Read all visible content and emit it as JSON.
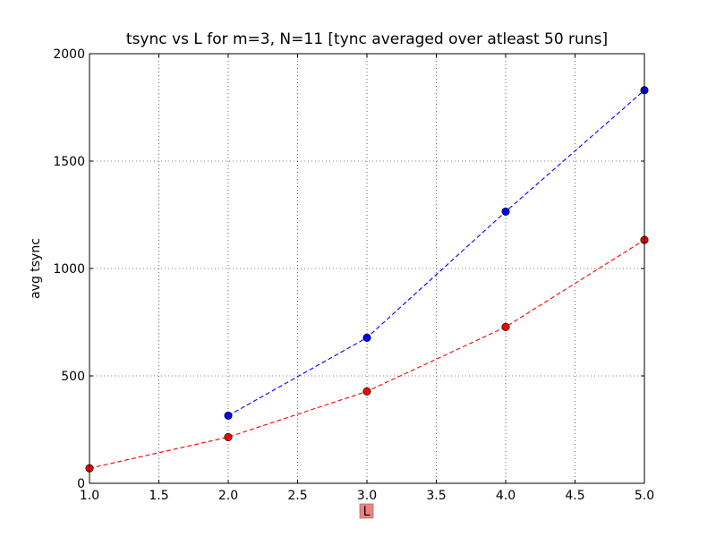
{
  "chart_data": {
    "type": "line",
    "title": "tsync vs L for m=3, N=11 [tync averaged over atleast 50 runs]",
    "xlabel": "L",
    "ylabel": "avg tsync",
    "xlim": [
      1.0,
      5.0
    ],
    "ylim": [
      0,
      2000
    ],
    "x_ticks": [
      "1.0",
      "1.5",
      "2.0",
      "2.5",
      "3.0",
      "3.5",
      "4.0",
      "4.5",
      "5.0"
    ],
    "y_ticks": [
      "0",
      "500",
      "1000",
      "1500",
      "2000"
    ],
    "grid": true,
    "legend": "none",
    "xlabel_highlight_color": "#f08080",
    "series": [
      {
        "color": "#0000ff",
        "marker_color": "#0000ff",
        "line_style": "dashed",
        "x": [
          2.0,
          3.0,
          4.0,
          5.0
        ],
        "values": [
          315,
          678,
          1265,
          1830
        ]
      },
      {
        "color": "#ff0000",
        "marker_color": "#ff0000",
        "line_style": "dashed",
        "x": [
          1.0,
          2.0,
          3.0,
          4.0,
          5.0
        ],
        "values": [
          70,
          215,
          428,
          728,
          1133
        ]
      }
    ]
  }
}
